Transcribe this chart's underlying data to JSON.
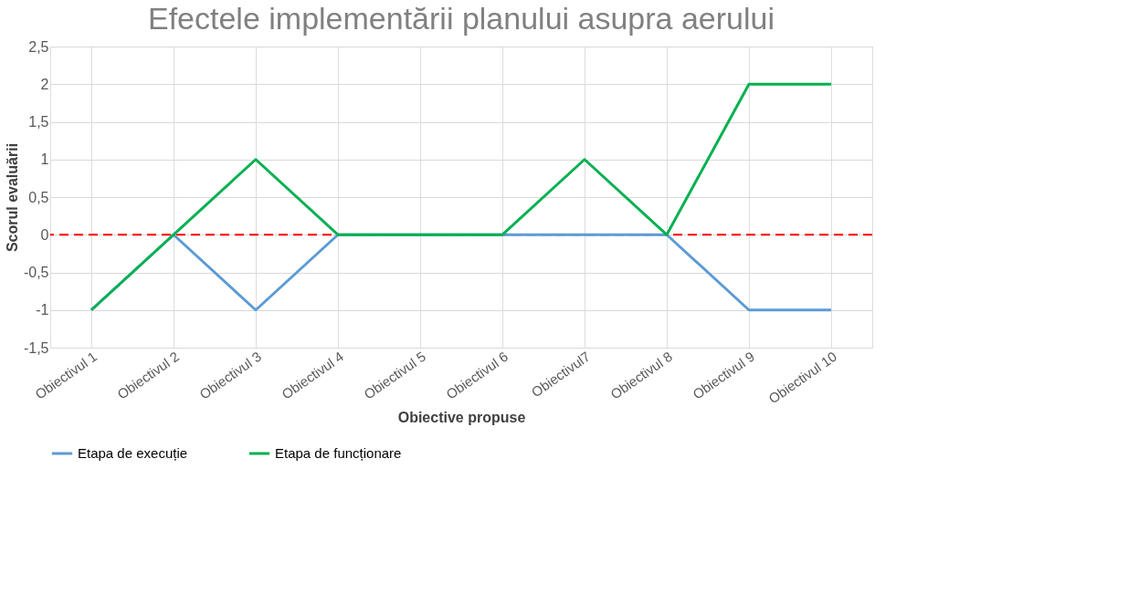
{
  "chart_data": {
    "type": "line",
    "title": "Efectele implementării planului asupra aerului",
    "xlabel": "Obiective propuse",
    "ylabel": "Scorul evaluării",
    "categories": [
      "Obiectivul 1",
      "Obiectivul 2",
      "Obiectivul 3",
      "Obiectivul 4",
      "Obiectivul 5",
      "Obiectivul 6",
      "Obiectivul7",
      "Obiectivul 8",
      "Obiectivul 9",
      "Obiectivul 10"
    ],
    "series": [
      {
        "name": "Etapa de execuție",
        "color": "#5b9bd5",
        "values": [
          -1,
          0,
          -1,
          0,
          0,
          0,
          0,
          0,
          -1,
          -1
        ]
      },
      {
        "name": "Etapa de funcționare",
        "color": "#00b050",
        "values": [
          -1,
          0,
          1,
          0,
          0,
          0,
          1,
          0,
          2,
          2
        ]
      }
    ],
    "ylim": [
      -1.5,
      2.5
    ],
    "yticks": [
      {
        "value": -1.5,
        "label": "-1,5"
      },
      {
        "value": -1,
        "label": "-1"
      },
      {
        "value": -0.5,
        "label": "-0,5"
      },
      {
        "value": 0,
        "label": "0"
      },
      {
        "value": 0.5,
        "label": "0,5"
      },
      {
        "value": 1,
        "label": "1"
      },
      {
        "value": 1.5,
        "label": "1,5"
      },
      {
        "value": 2,
        "label": "2"
      },
      {
        "value": 2.5,
        "label": "2,5"
      }
    ],
    "ref_lines": [
      {
        "axis": "y",
        "value": 0,
        "color": "#ff0000",
        "line_style": "dashed"
      }
    ],
    "grid": true,
    "legend": "bottom",
    "marker": "none",
    "line_style": "solid"
  }
}
